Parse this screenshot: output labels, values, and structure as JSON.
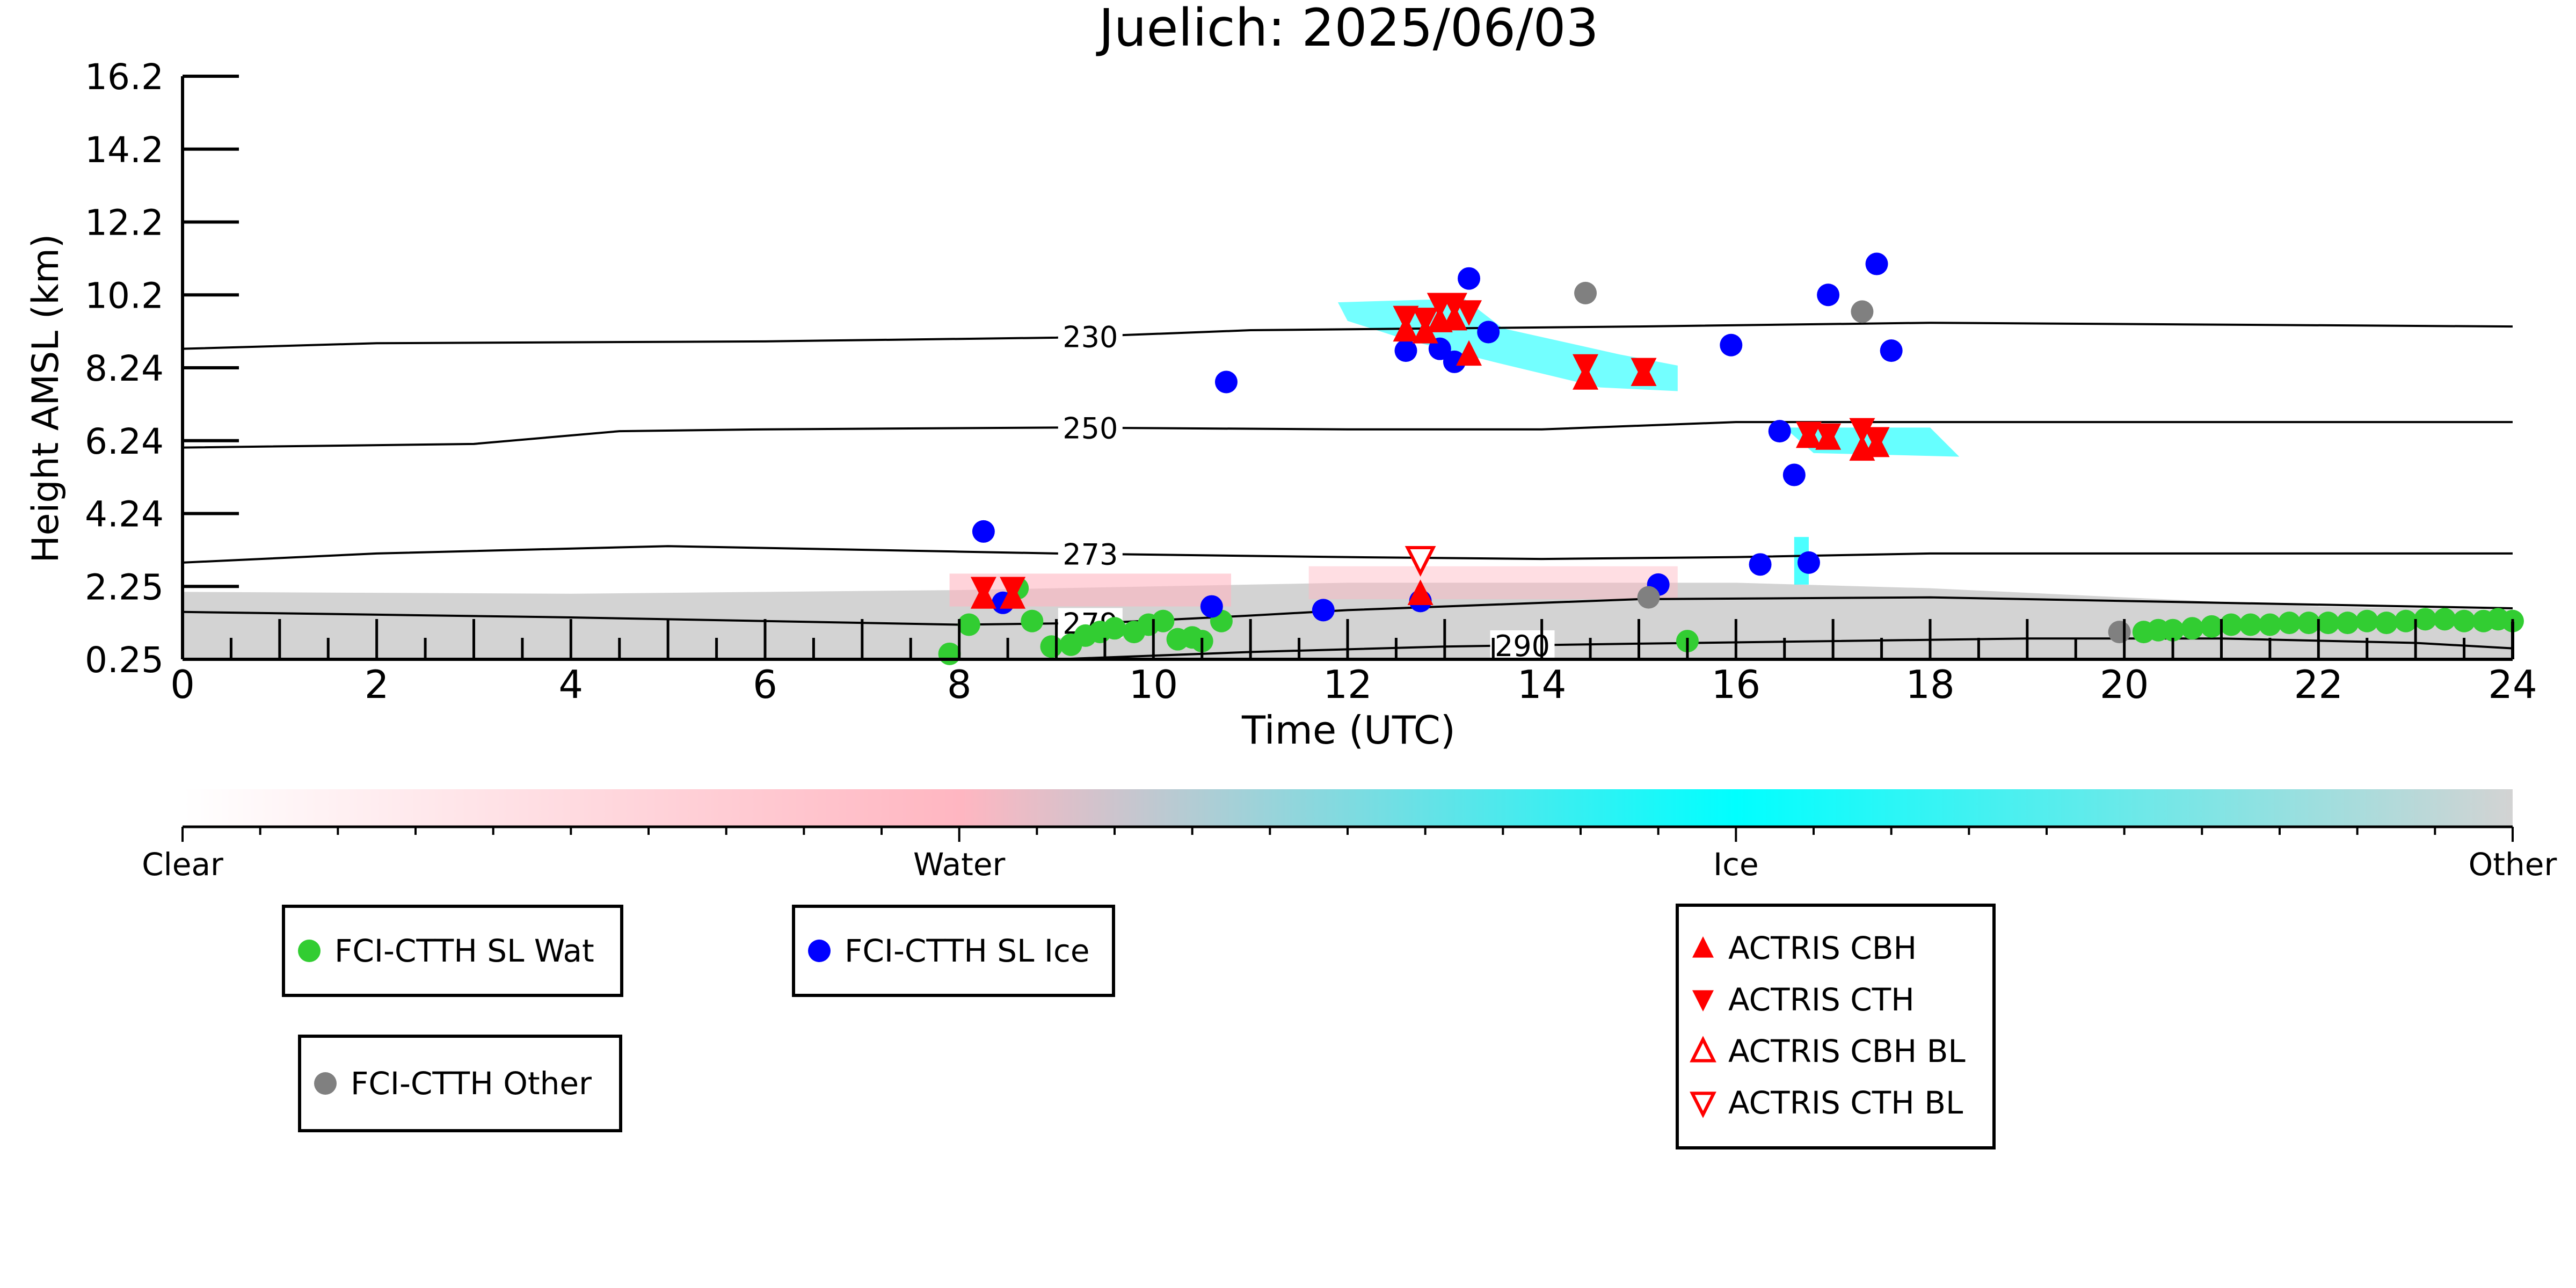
{
  "colors": {
    "water_points": "#32cd32",
    "ice_points": "#0000ff",
    "other_points": "#808080",
    "actris": "#ff0000",
    "cyan": "#00ffff",
    "pink": "#ffb6c1",
    "gray": "#d3d3d3"
  },
  "chart_data": {
    "type": "scatter",
    "title": "Juelich: 2025/06/03",
    "xlabel": "Time (UTC)",
    "ylabel": "Height AMSL (km)",
    "xlim": [
      0,
      24
    ],
    "ylim": [
      0.25,
      16.2
    ],
    "x_ticks": [
      "0",
      "2",
      "4",
      "6",
      "8",
      "10",
      "12",
      "14",
      "16",
      "18",
      "20",
      "22",
      "24"
    ],
    "y_ticks": [
      "0.25",
      "2.25",
      "4.24",
      "6.24",
      "8.24",
      "10.2",
      "12.2",
      "14.2",
      "16.2"
    ],
    "y_tick_values": [
      0.25,
      2.25,
      4.24,
      6.24,
      8.24,
      10.2,
      12.2,
      14.2,
      16.2
    ],
    "contours": [
      {
        "label": "230",
        "points": [
          [
            0,
            8.75
          ],
          [
            2,
            8.9
          ],
          [
            6,
            8.95
          ],
          [
            9,
            9.05
          ],
          [
            11,
            9.25
          ],
          [
            13,
            9.3
          ],
          [
            15,
            9.35
          ],
          [
            18,
            9.45
          ],
          [
            24,
            9.35
          ]
        ]
      },
      {
        "label": "250",
        "points": [
          [
            0,
            6.05
          ],
          [
            3,
            6.15
          ],
          [
            4.5,
            6.5
          ],
          [
            6,
            6.55
          ],
          [
            9,
            6.6
          ],
          [
            12,
            6.55
          ],
          [
            14,
            6.55
          ],
          [
            16,
            6.75
          ],
          [
            24,
            6.75
          ]
        ]
      },
      {
        "label": "273",
        "points": [
          [
            0,
            2.9
          ],
          [
            2,
            3.15
          ],
          [
            5,
            3.35
          ],
          [
            8,
            3.2
          ],
          [
            9,
            3.15
          ],
          [
            12,
            3.05
          ],
          [
            14,
            3.0
          ],
          [
            16,
            3.05
          ],
          [
            18,
            3.15
          ],
          [
            24,
            3.15
          ]
        ]
      },
      {
        "label": "279",
        "points": [
          [
            0,
            1.55
          ],
          [
            4,
            1.4
          ],
          [
            8,
            1.2
          ],
          [
            9.5,
            1.25
          ],
          [
            11,
            1.45
          ],
          [
            12,
            1.6
          ],
          [
            15,
            1.9
          ],
          [
            18,
            1.95
          ],
          [
            20,
            1.85
          ],
          [
            24,
            1.65
          ]
        ]
      },
      {
        "label": "290",
        "points": [
          [
            9,
            0.25
          ],
          [
            11,
            0.45
          ],
          [
            13,
            0.6
          ],
          [
            15,
            0.68
          ],
          [
            17,
            0.75
          ],
          [
            19,
            0.82
          ],
          [
            21,
            0.82
          ],
          [
            23,
            0.7
          ],
          [
            24,
            0.55
          ]
        ]
      }
    ],
    "series": [
      {
        "name": "FCI-CTTH SL Wat",
        "marker": "circle",
        "color": "#32cd32",
        "points": [
          [
            7.9,
            0.4
          ],
          [
            8.1,
            1.2
          ],
          [
            8.6,
            2.2
          ],
          [
            8.75,
            1.3
          ],
          [
            8.95,
            0.6
          ],
          [
            9.15,
            0.65
          ],
          [
            9.3,
            0.9
          ],
          [
            9.45,
            1.0
          ],
          [
            9.6,
            1.1
          ],
          [
            9.8,
            1.0
          ],
          [
            9.95,
            1.2
          ],
          [
            10.1,
            1.3
          ],
          [
            10.25,
            0.8
          ],
          [
            10.4,
            0.85
          ],
          [
            10.5,
            0.75
          ],
          [
            10.7,
            1.3
          ],
          [
            15.5,
            0.75
          ],
          [
            20.2,
            1.0
          ],
          [
            20.35,
            1.05
          ],
          [
            20.5,
            1.05
          ],
          [
            20.7,
            1.1
          ],
          [
            20.9,
            1.15
          ],
          [
            21.1,
            1.2
          ],
          [
            21.3,
            1.2
          ],
          [
            21.5,
            1.2
          ],
          [
            21.7,
            1.25
          ],
          [
            21.9,
            1.25
          ],
          [
            22.1,
            1.25
          ],
          [
            22.3,
            1.25
          ],
          [
            22.5,
            1.3
          ],
          [
            22.7,
            1.25
          ],
          [
            22.9,
            1.3
          ],
          [
            23.1,
            1.35
          ],
          [
            23.3,
            1.35
          ],
          [
            23.5,
            1.3
          ],
          [
            23.7,
            1.3
          ],
          [
            23.85,
            1.35
          ],
          [
            24.0,
            1.3
          ]
        ]
      },
      {
        "name": "FCI-CTTH SL Ice",
        "marker": "circle",
        "color": "#0000ff",
        "points": [
          [
            8.25,
            3.75
          ],
          [
            8.45,
            1.8
          ],
          [
            10.6,
            1.7
          ],
          [
            10.75,
            7.85
          ],
          [
            11.75,
            1.6
          ],
          [
            12.6,
            8.7
          ],
          [
            12.75,
            1.85
          ],
          [
            12.95,
            8.75
          ],
          [
            13.1,
            8.4
          ],
          [
            13.25,
            10.65
          ],
          [
            13.45,
            9.2
          ],
          [
            15.2,
            2.3
          ],
          [
            15.95,
            8.85
          ],
          [
            16.25,
            2.85
          ],
          [
            16.45,
            6.5
          ],
          [
            16.6,
            5.3
          ],
          [
            16.75,
            2.9
          ],
          [
            16.95,
            10.2
          ],
          [
            17.45,
            11.05
          ],
          [
            17.6,
            8.7
          ]
        ]
      },
      {
        "name": "FCI-CTTH Other",
        "marker": "circle",
        "color": "#808080",
        "points": [
          [
            14.45,
            10.25
          ],
          [
            15.1,
            1.95
          ],
          [
            17.3,
            9.75
          ],
          [
            19.95,
            1.0
          ]
        ]
      },
      {
        "name": "ACTRIS CBH",
        "marker": "triangle-up",
        "color": "#ff0000",
        "points": [
          [
            8.25,
            1.95
          ],
          [
            8.55,
            1.95
          ],
          [
            12.6,
            9.25
          ],
          [
            12.8,
            9.2
          ],
          [
            12.95,
            9.5
          ],
          [
            13.1,
            9.55
          ],
          [
            13.25,
            8.6
          ],
          [
            14.45,
            7.95
          ],
          [
            15.05,
            8.05
          ],
          [
            16.75,
            6.35
          ],
          [
            16.95,
            6.3
          ],
          [
            17.3,
            6.0
          ],
          [
            17.45,
            6.1
          ],
          [
            12.75,
            2.05
          ]
        ]
      },
      {
        "name": "ACTRIS CTH",
        "marker": "triangle-down",
        "color": "#ff0000",
        "points": [
          [
            8.25,
            2.2
          ],
          [
            8.55,
            2.2
          ],
          [
            12.6,
            9.6
          ],
          [
            12.8,
            9.55
          ],
          [
            12.95,
            9.95
          ],
          [
            13.1,
            9.95
          ],
          [
            13.25,
            9.75
          ],
          [
            14.45,
            8.3
          ],
          [
            15.05,
            8.2
          ],
          [
            16.75,
            6.45
          ],
          [
            16.95,
            6.4
          ],
          [
            17.3,
            6.55
          ],
          [
            17.45,
            6.3
          ]
        ]
      },
      {
        "name": "ACTRIS CBH BL",
        "marker": "triangle-up-open",
        "color": "#ff0000",
        "points": []
      },
      {
        "name": "ACTRIS CTH BL",
        "marker": "triangle-down-open",
        "color": "#ff0000",
        "points": [
          [
            12.75,
            3.0
          ]
        ]
      }
    ],
    "colorbar": {
      "labels": [
        "Clear",
        "Water",
        "Ice",
        "Other"
      ],
      "stops": [
        "#ffffff",
        "#ffb6c1",
        "#00ffff",
        "#d3d3d3"
      ]
    },
    "legends": [
      {
        "entries": [
          {
            "label": "FCI-CTTH SL Wat",
            "marker": "circle",
            "color": "#32cd32"
          }
        ]
      },
      {
        "entries": [
          {
            "label": "FCI-CTTH SL Ice",
            "marker": "circle",
            "color": "#0000ff"
          }
        ]
      },
      {
        "entries": [
          {
            "label": "FCI-CTTH Other",
            "marker": "circle",
            "color": "#808080"
          }
        ]
      },
      {
        "entries": [
          {
            "label": "ACTRIS CBH",
            "marker": "triangle-up",
            "color": "#ff0000"
          },
          {
            "label": "ACTRIS CTH",
            "marker": "triangle-down",
            "color": "#ff0000"
          },
          {
            "label": "ACTRIS CBH BL",
            "marker": "triangle-up-open",
            "color": "#ff0000"
          },
          {
            "label": "ACTRIS CTH BL",
            "marker": "triangle-down-open",
            "color": "#ff0000"
          }
        ]
      }
    ]
  }
}
